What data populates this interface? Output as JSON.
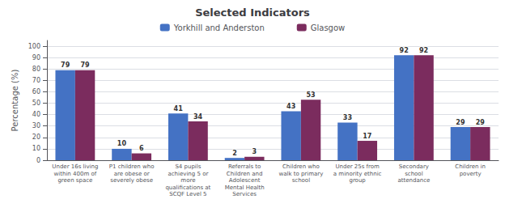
{
  "chart_data": {
    "type": "bar",
    "title": "Selected Indicators",
    "ylabel": "Percentage (%)",
    "categories": [
      "Under 16s living\nwithin 400m of\ngreen space",
      "P1 children who\nare obese or\nseverely obese",
      "S4 pupils\nachieving 5 or\nmore\nqualifications at\nSCQF Level 5",
      "Referrals to\nChildren and\nAdolescent\nMental Health\nServices",
      "Children who\nwalk to primary\nschool",
      "Under 25s from\na minority ethnic\ngroup",
      "Secondary\nschool\nattendance",
      "Children in\npoverty"
    ],
    "series": [
      {
        "name": "Yorkhill and Anderston",
        "color": "#4472C4",
        "values": [
          79,
          10,
          41,
          2,
          43,
          33,
          92,
          29
        ]
      },
      {
        "name": "Glasgow",
        "color": "#7B2C5E",
        "values": [
          79,
          6,
          34,
          3,
          53,
          17,
          92,
          29
        ]
      }
    ],
    "ylim": [
      0,
      105
    ],
    "yticks": [
      0,
      10,
      20,
      30,
      40,
      50,
      60,
      70,
      80,
      90,
      100
    ],
    "grid": true,
    "legend": "top",
    "data_labels": true
  }
}
